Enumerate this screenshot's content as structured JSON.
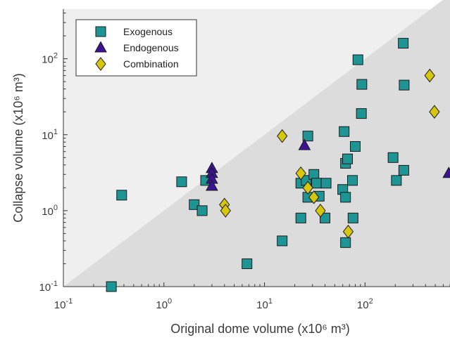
{
  "chart_data": {
    "type": "scatter",
    "xlabel": "Original dome volume (x10⁶ m³)",
    "ylabel": "Collapse volume (x10⁶ m³)",
    "xscale": "log",
    "yscale": "log",
    "xlim": [
      0.1,
      700
    ],
    "ylim": [
      0.1,
      450
    ],
    "xticks": [
      {
        "value": 0.1,
        "base": "10",
        "exp": "-1"
      },
      {
        "value": 1,
        "base": "10",
        "exp": "0"
      },
      {
        "value": 10,
        "base": "10",
        "exp": "1"
      },
      {
        "value": 100,
        "base": "10",
        "exp": "2"
      }
    ],
    "yticks": [
      {
        "value": 0.1,
        "base": "10",
        "exp": "-1"
      },
      {
        "value": 1,
        "base": "10",
        "exp": "0"
      },
      {
        "value": 10,
        "base": "10",
        "exp": "1"
      },
      {
        "value": 100,
        "base": "10",
        "exp": "2"
      }
    ],
    "grid": false,
    "legend_position": "top-left",
    "background_colors": {
      "region_above_line": "#efefef",
      "region_below_line": "#dcdcdc"
    },
    "series": [
      {
        "name": "Exogenous",
        "marker": "square",
        "color": "#1e9594",
        "points": [
          {
            "x": 0.3,
            "y": 0.1
          },
          {
            "x": 0.38,
            "y": 1.6
          },
          {
            "x": 1.5,
            "y": 2.4
          },
          {
            "x": 2.0,
            "y": 1.2
          },
          {
            "x": 2.4,
            "y": 1.0
          },
          {
            "x": 2.6,
            "y": 2.5
          },
          {
            "x": 6.7,
            "y": 0.2
          },
          {
            "x": 15,
            "y": 0.4
          },
          {
            "x": 23,
            "y": 0.8
          },
          {
            "x": 23,
            "y": 2.3
          },
          {
            "x": 26,
            "y": 2.5
          },
          {
            "x": 27,
            "y": 9.6
          },
          {
            "x": 27,
            "y": 1.5
          },
          {
            "x": 31,
            "y": 3.0
          },
          {
            "x": 33,
            "y": 2.3
          },
          {
            "x": 35,
            "y": 1.55
          },
          {
            "x": 40,
            "y": 0.8
          },
          {
            "x": 41,
            "y": 2.3
          },
          {
            "x": 60,
            "y": 1.9
          },
          {
            "x": 62,
            "y": 11
          },
          {
            "x": 64,
            "y": 4.2
          },
          {
            "x": 64,
            "y": 1.5
          },
          {
            "x": 64,
            "y": 0.38
          },
          {
            "x": 67,
            "y": 4.8
          },
          {
            "x": 75,
            "y": 2.5
          },
          {
            "x": 76,
            "y": 0.8
          },
          {
            "x": 80,
            "y": 7.0
          },
          {
            "x": 85,
            "y": 97
          },
          {
            "x": 93,
            "y": 46
          },
          {
            "x": 92,
            "y": 19
          },
          {
            "x": 190,
            "y": 5.0
          },
          {
            "x": 205,
            "y": 2.5
          },
          {
            "x": 240,
            "y": 160
          },
          {
            "x": 245,
            "y": 45
          },
          {
            "x": 243,
            "y": 3.4
          }
        ]
      },
      {
        "name": "Endogenous",
        "marker": "triangle",
        "color": "#3c1493",
        "points": [
          {
            "x": 3.0,
            "y": 3.6
          },
          {
            "x": 3.0,
            "y": 3.1
          },
          {
            "x": 3.0,
            "y": 2.6
          },
          {
            "x": 3.0,
            "y": 2.1
          },
          {
            "x": 25,
            "y": 7.2
          },
          {
            "x": 680,
            "y": 3.1
          }
        ]
      },
      {
        "name": "Combination",
        "marker": "diamond",
        "color": "#d6c60c",
        "points": [
          {
            "x": 4.0,
            "y": 1.2
          },
          {
            "x": 4.1,
            "y": 1.0
          },
          {
            "x": 15,
            "y": 9.6
          },
          {
            "x": 23,
            "y": 3.1
          },
          {
            "x": 27,
            "y": 2.0
          },
          {
            "x": 31,
            "y": 1.5
          },
          {
            "x": 36,
            "y": 1.0
          },
          {
            "x": 68,
            "y": 0.53
          },
          {
            "x": 440,
            "y": 60
          },
          {
            "x": 490,
            "y": 20
          }
        ]
      }
    ]
  }
}
